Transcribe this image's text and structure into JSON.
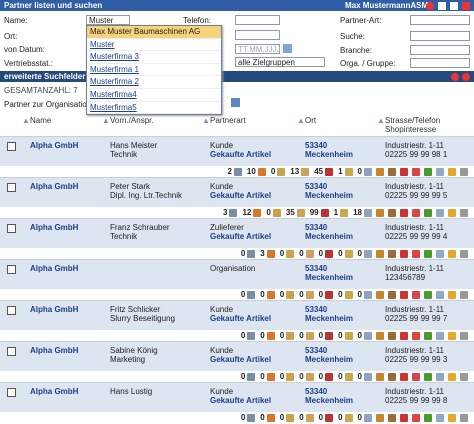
{
  "header": {
    "title": "Partner listen und suchen",
    "user": "Max MustermannASM"
  },
  "form": {
    "name_label": "Name:",
    "name_value": "Muster",
    "ort_label": "Ort:",
    "datum_label": "von Datum:",
    "vertrieb_label": "Vertriebsstat.:",
    "telefon_label": "Telefon:",
    "datum_placeholder": "TT.MM.JJJJ",
    "vertrieb_select": "alle Zielgruppen",
    "right_labels": [
      "Partner-Art:",
      "Suche:",
      "Branche:",
      "Orga. / Gruppe:"
    ]
  },
  "autocomplete": [
    "Max Muster Baumaschinen AG",
    "Muster",
    "Musterfirma 3",
    "Musterfirma 1",
    "Musterfirma 2",
    "Musterfirma4",
    "Musterfirma5"
  ],
  "section_bar": "erweiterte Suchfelder e",
  "summary": "GESAMTANZAHL: 7",
  "org_link": "Partner zur Organisation z",
  "table": {
    "headers": [
      "Name",
      "Vorn./Anspr.",
      "Partnerart",
      "Ort",
      "Strasse/Telefon"
    ],
    "header_sub": "Shopinteresse",
    "rows": [
      {
        "name": "Alpha GmbH",
        "contact": [
          "Hans Meister",
          "Technik"
        ],
        "partnerart": [
          "Kunde",
          "Gekaufte Artikel"
        ],
        "plz": "53340",
        "ort": "Meckenheim",
        "strasse": "Industriestr. 1-11",
        "telefon": "02225 99 99 98 1",
        "counts": [
          2,
          10,
          0,
          13,
          45,
          1,
          0
        ]
      },
      {
        "name": "Alpha GmbH",
        "contact": [
          "Peter Stark",
          "Dipl. Ing. Ltr.Technik"
        ],
        "partnerart": [
          "Kunde",
          "Gekaufte Artikel"
        ],
        "plz": "53340",
        "ort": "Meckenheim",
        "strasse": "Industriestr. 1-11",
        "telefon": "02225 99 99 99 5",
        "counts": [
          3,
          12,
          0,
          35,
          99,
          1,
          18
        ]
      },
      {
        "name": "Alpha GmbH",
        "contact": [
          "Franz Schrauber",
          "Technik"
        ],
        "partnerart": [
          "Zulieferer",
          "Gekaufte Artikel"
        ],
        "plz": "53340",
        "ort": "Meckenheim",
        "strasse": "Industriestr. 1-11",
        "telefon": "02225 99 99 99 4",
        "counts": [
          0,
          3,
          0,
          0,
          0,
          0,
          0
        ]
      },
      {
        "name": "Alpha GmbH",
        "contact": [],
        "partnerart": [
          "Organisation"
        ],
        "plz": "53340",
        "ort": "Meckenheim",
        "strasse": "Industriestr. 1-11",
        "telefon": "123456789",
        "counts": [
          0,
          0,
          0,
          0,
          0,
          0,
          0
        ]
      },
      {
        "name": "Alpha GmbH",
        "contact": [
          "Fritz Schlicker",
          "Slurry Beseitigung"
        ],
        "partnerart": [
          "Kunde",
          "Gekaufte Artikel"
        ],
        "plz": "53340",
        "ort": "Meckenheim",
        "strasse": "Industriestr. 1-11",
        "telefon": "02225 99 99 99 7",
        "counts": [
          0,
          0,
          0,
          0,
          0,
          0,
          0
        ]
      },
      {
        "name": "Alpha GmbH",
        "contact": [
          "Sabine König",
          "Marketing"
        ],
        "partnerart": [
          "Kunde",
          "Gekaufte Artikel"
        ],
        "plz": "53340",
        "ort": "Meckenheim",
        "strasse": "Industriestr. 1-11",
        "telefon": "02225 99 99 99 3",
        "counts": [
          0,
          0,
          0,
          0,
          0,
          0,
          0
        ]
      },
      {
        "name": "Alpha GmbH",
        "contact": [
          "Hans Lustig"
        ],
        "partnerart": [
          "Kunde",
          "Gekaufte Artikel"
        ],
        "plz": "53340",
        "ort": "Meckenheim",
        "strasse": "Industriestr. 1-11",
        "telefon": "02225 99 99 99 8",
        "counts": [
          0,
          0,
          0,
          0,
          0,
          0,
          0
        ]
      }
    ]
  }
}
